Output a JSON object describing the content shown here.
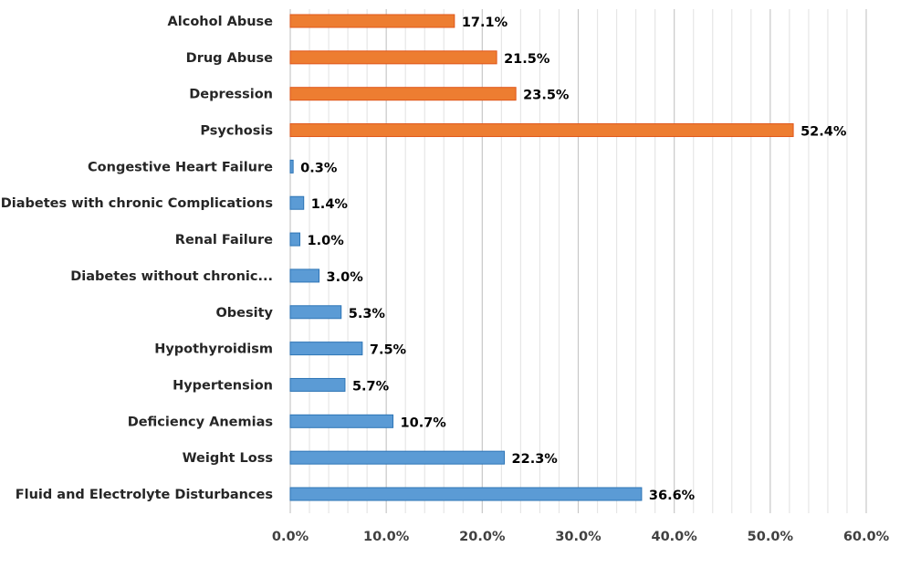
{
  "chart_data": {
    "type": "bar",
    "orientation": "horizontal",
    "title": "",
    "xlabel": "",
    "ylabel": "",
    "xlim": [
      0,
      60
    ],
    "x_ticks": [
      "0.0%",
      "10.0%",
      "20.0%",
      "30.0%",
      "40.0%",
      "50.0%",
      "60.0%"
    ],
    "grid": "vertical major every 10%, minor every 2%",
    "legend": "none",
    "categories": [
      "Alcohol Abuse",
      "Drug Abuse",
      "Depression",
      "Psychosis",
      "Congestive Heart Failure",
      "Diabetes with chronic Complications",
      "Renal Failure",
      "Diabetes without chronic...",
      "Obesity",
      "Hypothyroidism",
      "Hypertension",
      "Deficiency Anemias",
      "Weight Loss",
      "Fluid and Electrolyte Disturbances"
    ],
    "values": [
      17.1,
      21.5,
      23.5,
      52.4,
      0.3,
      1.4,
      1.0,
      3.0,
      5.3,
      7.5,
      5.7,
      10.7,
      22.3,
      36.6
    ],
    "value_labels": [
      "17.1%",
      "21.5%",
      "23.5%",
      "52.4%",
      "0.3%",
      "1.4%",
      "1.0%",
      "3.0%",
      "5.3%",
      "7.5%",
      "5.7%",
      "10.7%",
      "22.3%",
      "36.6%"
    ],
    "bar_colors": [
      "#ED7D31",
      "#ED7D31",
      "#ED7D31",
      "#ED7D31",
      "#5B9BD5",
      "#5B9BD5",
      "#5B9BD5",
      "#5B9BD5",
      "#5B9BD5",
      "#5B9BD5",
      "#5B9BD5",
      "#5B9BD5",
      "#5B9BD5",
      "#5B9BD5"
    ],
    "colors": {
      "orange": "#ED7D31",
      "orange_edge": "#E0561A",
      "blue": "#5B9BD5",
      "blue_edge": "#2E75B6"
    }
  }
}
